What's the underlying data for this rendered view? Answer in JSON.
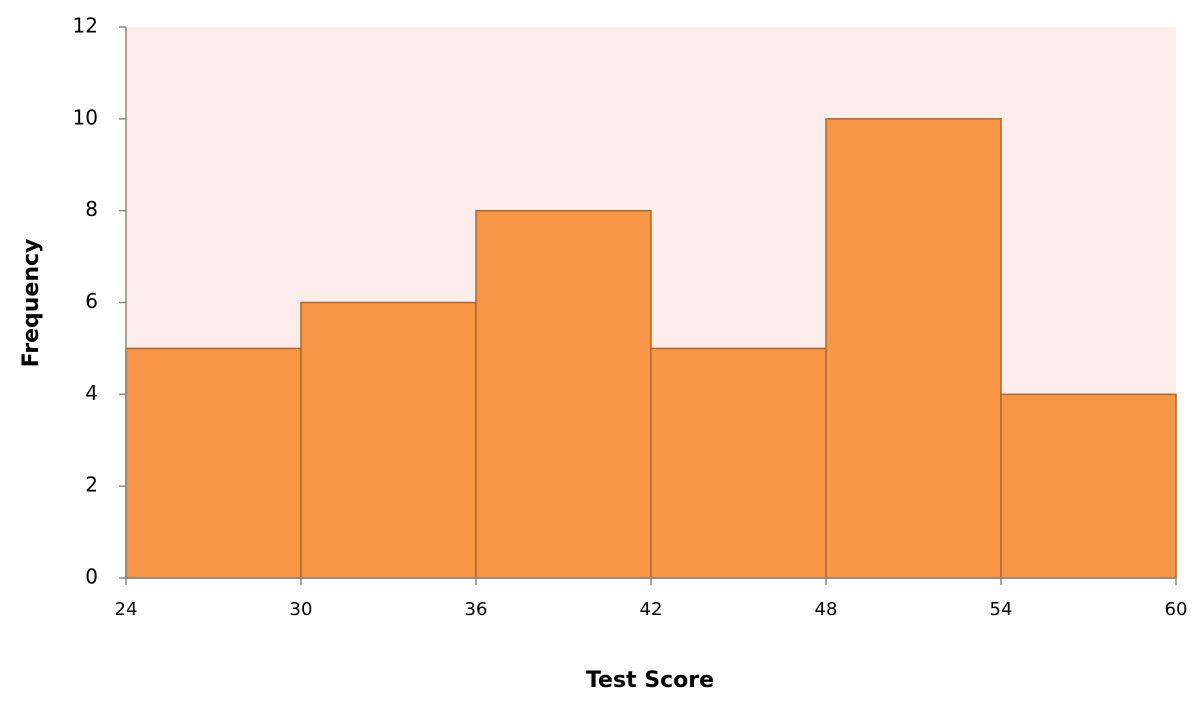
{
  "chart_data": {
    "type": "histogram",
    "x_label": "Test Score",
    "y_label": "Frequency",
    "bins": [
      24,
      30,
      36,
      42,
      48,
      54,
      60
    ],
    "values": [
      5,
      6,
      8,
      5,
      10,
      4
    ],
    "color": "#f79646",
    "edge_color": "#b0662a",
    "background": "#fdedea",
    "xlim": [
      24,
      60
    ],
    "xticks": [
      24,
      30,
      36,
      42,
      48,
      54,
      60
    ],
    "ylim": [
      0,
      12
    ],
    "yticks": [
      0,
      2,
      4,
      6,
      8,
      10,
      12
    ]
  }
}
